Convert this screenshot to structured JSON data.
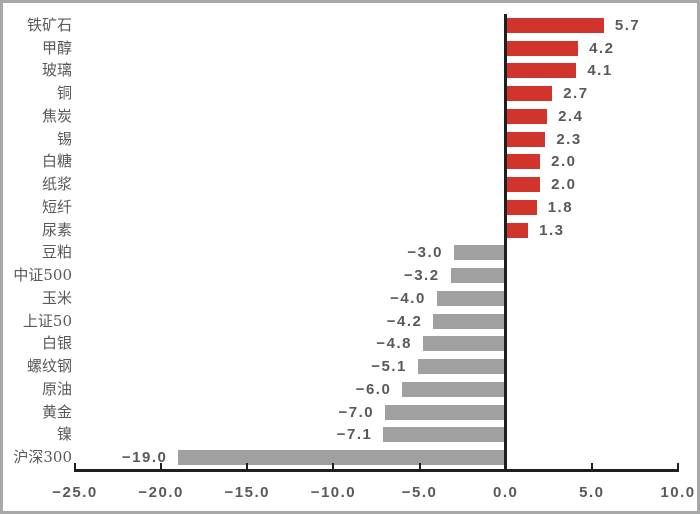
{
  "chart_data": {
    "type": "bar",
    "orientation": "horizontal",
    "title": "",
    "categories": [
      "铁矿石",
      "甲醇",
      "玻璃",
      "铜",
      "焦炭",
      "锡",
      "白糖",
      "纸浆",
      "短纤",
      "尿素",
      "豆粕",
      "中证500",
      "玉米",
      "上证50",
      "白银",
      "螺纹钢",
      "原油",
      "黄金",
      "镍",
      "沪深300"
    ],
    "values": [
      5.7,
      4.2,
      4.1,
      2.7,
      2.4,
      2.3,
      2.0,
      2.0,
      1.8,
      1.3,
      -3.0,
      -3.2,
      -4.0,
      -4.2,
      -4.8,
      -5.1,
      -6.0,
      -7.0,
      -7.1,
      -19.0
    ],
    "value_labels": [
      "5.7",
      "4.2",
      "4.1",
      "2.7",
      "2.4",
      "2.3",
      "2.0",
      "2.0",
      "1.8",
      "1.3",
      "−3.0",
      "−3.2",
      "−4.0",
      "−4.2",
      "−4.8",
      "−5.1",
      "−6.0",
      "−7.0",
      "−7.1",
      "−19.0"
    ],
    "xlim": [
      -25,
      10
    ],
    "x_ticks": [
      {
        "value": -25,
        "label": "−25.0"
      },
      {
        "value": -20,
        "label": "−20.0"
      },
      {
        "value": -15,
        "label": "−15.0"
      },
      {
        "value": -10,
        "label": "−10.0"
      },
      {
        "value": -5,
        "label": "−5.0"
      },
      {
        "value": 0,
        "label": "0.0"
      },
      {
        "value": 5,
        "label": "5.0"
      },
      {
        "value": 10,
        "label": "10.0"
      }
    ],
    "grid": false,
    "legend": false,
    "colors": {
      "positive_bar": "#d0342c",
      "negative_bar": "#a0a0a0",
      "axis_line": "#1f1f1f",
      "text": "#595959",
      "frame_border": "#a8a8a8"
    }
  }
}
